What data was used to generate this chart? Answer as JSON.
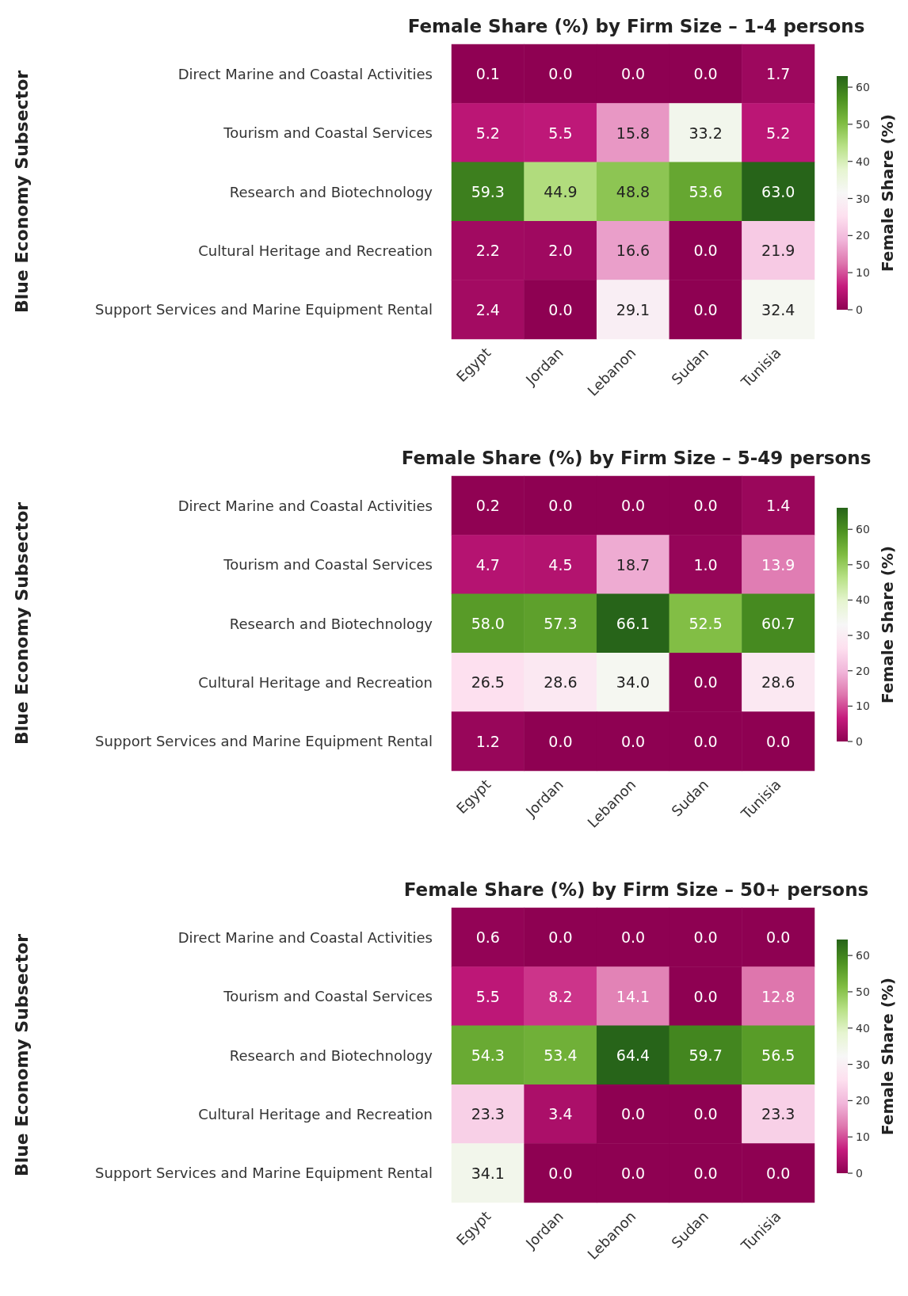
{
  "chart_data": [
    {
      "type": "heatmap",
      "title": "Female Share (%) by Firm Size – 1-4 persons",
      "ylabel": "Blue Economy Subsector",
      "clabel": "Female Share (%)",
      "categories": [
        "Egypt",
        "Jordan",
        "Lebanon",
        "Sudan",
        "Tunisia"
      ],
      "y_categories": [
        "Direct Marine and Coastal Activities",
        "Tourism and Coastal Services",
        "Research and Biotechnology",
        "Cultural Heritage and Recreation",
        "Support Services and Marine Equipment Rental"
      ],
      "cells": [
        [
          0.1,
          0.0,
          0.0,
          0.0,
          1.7
        ],
        [
          5.2,
          5.5,
          15.8,
          33.2,
          5.2
        ],
        [
          59.3,
          44.9,
          48.8,
          53.6,
          63.0
        ],
        [
          2.2,
          2.0,
          16.6,
          0.0,
          21.9
        ],
        [
          2.4,
          0.0,
          29.1,
          0.0,
          32.4
        ]
      ],
      "cell_labels": [
        [
          "0.1",
          "0.0",
          "0.0",
          "0.0",
          "1.7"
        ],
        [
          "5.2",
          "5.5",
          "15.8",
          "33.2",
          "5.2"
        ],
        [
          "59.3",
          "44.9",
          "48.8",
          "53.6",
          "63.0"
        ],
        [
          "2.2",
          "2.0",
          "16.6",
          "0.0",
          "21.9"
        ],
        [
          "2.4",
          "0.0",
          "29.1",
          "0.0",
          "32.4"
        ]
      ],
      "clim": [
        0,
        63.0
      ],
      "cticks": [
        0,
        10,
        20,
        30,
        40,
        50,
        60
      ]
    },
    {
      "type": "heatmap",
      "title": "Female Share (%) by Firm Size – 5-49 persons",
      "ylabel": "Blue Economy Subsector",
      "clabel": "Female Share (%)",
      "categories": [
        "Egypt",
        "Jordan",
        "Lebanon",
        "Sudan",
        "Tunisia"
      ],
      "y_categories": [
        "Direct Marine and Coastal Activities",
        "Tourism and Coastal Services",
        "Research and Biotechnology",
        "Cultural Heritage and Recreation",
        "Support Services and Marine Equipment Rental"
      ],
      "cells": [
        [
          0.2,
          0.0,
          0.0,
          0.0,
          1.4
        ],
        [
          4.7,
          4.5,
          18.7,
          1.0,
          13.9
        ],
        [
          58.0,
          57.3,
          66.1,
          52.5,
          60.7
        ],
        [
          26.5,
          28.6,
          34.0,
          0.0,
          28.6
        ],
        [
          1.2,
          0.0,
          0.0,
          0.0,
          0.0
        ]
      ],
      "cell_labels": [
        [
          "0.2",
          "0.0",
          "0.0",
          "0.0",
          "1.4"
        ],
        [
          "4.7",
          "4.5",
          "18.7",
          "1.0",
          "13.9"
        ],
        [
          "58.0",
          "57.3",
          "66.1",
          "52.5",
          "60.7"
        ],
        [
          "26.5",
          "28.6",
          "34.0",
          "0.0",
          "28.6"
        ],
        [
          "1.2",
          "0.0",
          "0.0",
          "0.0",
          "0.0"
        ]
      ],
      "clim": [
        0,
        66.1
      ],
      "cticks": [
        0,
        10,
        20,
        30,
        40,
        50,
        60
      ]
    },
    {
      "type": "heatmap",
      "title": "Female Share (%) by Firm Size – 50+ persons",
      "ylabel": "Blue Economy Subsector",
      "clabel": "Female Share (%)",
      "categories": [
        "Egypt",
        "Jordan",
        "Lebanon",
        "Sudan",
        "Tunisia"
      ],
      "y_categories": [
        "Direct Marine and Coastal Activities",
        "Tourism and Coastal Services",
        "Research and Biotechnology",
        "Cultural Heritage and Recreation",
        "Support Services and Marine Equipment Rental"
      ],
      "cells": [
        [
          0.6,
          0.0,
          0.0,
          0.0,
          0.0
        ],
        [
          5.5,
          8.2,
          14.1,
          0.0,
          12.8
        ],
        [
          54.3,
          53.4,
          64.4,
          59.7,
          56.5
        ],
        [
          23.3,
          3.4,
          0.0,
          0.0,
          23.3
        ],
        [
          34.1,
          0.0,
          0.0,
          0.0,
          0.0
        ]
      ],
      "cell_labels": [
        [
          "0.6",
          "0.0",
          "0.0",
          "0.0",
          "0.0"
        ],
        [
          "5.5",
          "8.2",
          "14.1",
          "0.0",
          "12.8"
        ],
        [
          "54.3",
          "53.4",
          "64.4",
          "59.7",
          "56.5"
        ],
        [
          "23.3",
          "3.4",
          "0.0",
          "0.0",
          "23.3"
        ],
        [
          "34.1",
          "0.0",
          "0.0",
          "0.0",
          "0.0"
        ]
      ],
      "clim": [
        0,
        64.4
      ],
      "cticks": [
        0,
        10,
        20,
        30,
        40,
        50,
        60
      ]
    }
  ]
}
